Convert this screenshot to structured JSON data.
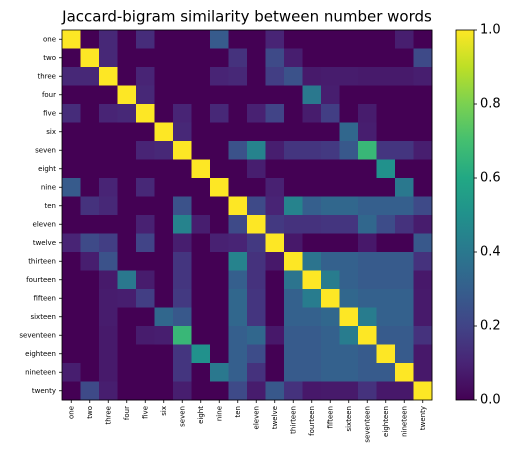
{
  "chart_data": {
    "type": "heatmap",
    "title": "Jaccard-bigram similarity between number words",
    "categories": [
      "one",
      "two",
      "three",
      "four",
      "five",
      "six",
      "seven",
      "eight",
      "nine",
      "ten",
      "eleven",
      "twelve",
      "thirteen",
      "fourteen",
      "fifteen",
      "sixteen",
      "seventeen",
      "eighteen",
      "nineteen",
      "twenty"
    ],
    "values": [
      [
        1,
        0,
        0.111,
        0,
        0.125,
        0,
        0,
        0,
        0.286,
        0,
        0,
        0.1,
        0,
        0,
        0,
        0,
        0,
        0,
        0.083,
        0
      ],
      [
        0,
        1,
        0.111,
        0,
        0,
        0,
        0,
        0,
        0,
        0.143,
        0,
        0.222,
        0.083,
        0,
        0,
        0,
        0,
        0,
        0,
        0.222
      ],
      [
        0.111,
        0.111,
        1,
        0,
        0.1,
        0,
        0,
        0,
        0.1,
        0.111,
        0,
        0.182,
        0.25,
        0.071,
        0.077,
        0.077,
        0.071,
        0.071,
        0.071,
        0.083
      ],
      [
        0,
        0,
        0,
        1,
        0.111,
        0,
        0,
        0,
        0,
        0,
        0,
        0,
        0,
        0.4,
        0.083,
        0,
        0,
        0,
        0,
        0
      ],
      [
        0.125,
        0,
        0.1,
        0.111,
        1,
        0,
        0.1,
        0,
        0.111,
        0,
        0.091,
        0.2,
        0,
        0.077,
        0.182,
        0,
        0.077,
        0,
        0,
        0
      ],
      [
        0,
        0,
        0,
        0,
        0,
        1,
        0.111,
        0,
        0,
        0,
        0,
        0,
        0,
        0,
        0,
        0.333,
        0.083,
        0,
        0,
        0
      ],
      [
        0,
        0,
        0,
        0,
        0.1,
        0.111,
        1,
        0,
        0,
        0.25,
        0.444,
        0.083,
        0.154,
        0.154,
        0.167,
        0.273,
        0.667,
        0.154,
        0.154,
        0.083
      ],
      [
        0,
        0,
        0,
        0,
        0,
        0,
        0,
        1,
        0,
        0,
        0.083,
        0,
        0,
        0,
        0,
        0,
        0,
        0.5,
        0,
        0
      ],
      [
        0.286,
        0,
        0.1,
        0,
        0.111,
        0,
        0,
        0,
        1,
        0,
        0,
        0.091,
        0,
        0,
        0,
        0,
        0,
        0,
        0.4,
        0
      ],
      [
        0,
        0.143,
        0.111,
        0,
        0,
        0,
        0.25,
        0,
        0,
        1,
        0.222,
        0.1,
        0.444,
        0.3,
        0.333,
        0.333,
        0.3,
        0.3,
        0.3,
        0.222
      ],
      [
        0,
        0,
        0,
        0,
        0.091,
        0,
        0.444,
        0.083,
        0,
        0.222,
        1,
        0.167,
        0.143,
        0.143,
        0.154,
        0.154,
        0.333,
        0.231,
        0.143,
        0.077
      ],
      [
        0.1,
        0.222,
        0.182,
        0,
        0.2,
        0,
        0.083,
        0,
        0.091,
        0.1,
        0.167,
        1,
        0.067,
        0,
        0,
        0,
        0.067,
        0,
        0,
        0.273
      ],
      [
        0,
        0.083,
        0.25,
        0,
        0,
        0,
        0.154,
        0,
        0,
        0.444,
        0.143,
        0.067,
        1,
        0.385,
        0.308,
        0.308,
        0.286,
        0.286,
        0.286,
        0.143
      ],
      [
        0,
        0,
        0.071,
        0.4,
        0.077,
        0,
        0.154,
        0,
        0,
        0.3,
        0.143,
        0,
        0.385,
        1,
        0.417,
        0.308,
        0.286,
        0.286,
        0.286,
        0.067
      ],
      [
        0,
        0,
        0.077,
        0.083,
        0.182,
        0,
        0.167,
        0,
        0,
        0.333,
        0.154,
        0,
        0.308,
        0.417,
        1,
        0.333,
        0.308,
        0.308,
        0.308,
        0.071
      ],
      [
        0,
        0,
        0.077,
        0,
        0,
        0.333,
        0.273,
        0,
        0,
        0.333,
        0.154,
        0,
        0.308,
        0.308,
        0.333,
        1,
        0.417,
        0.308,
        0.308,
        0.071
      ],
      [
        0,
        0,
        0.071,
        0,
        0.077,
        0.083,
        0.667,
        0,
        0,
        0.3,
        0.333,
        0.067,
        0.286,
        0.286,
        0.308,
        0.417,
        1,
        0.286,
        0.286,
        0.143
      ],
      [
        0,
        0,
        0.071,
        0,
        0,
        0,
        0.154,
        0.5,
        0,
        0.3,
        0.231,
        0,
        0.286,
        0.286,
        0.308,
        0.308,
        0.286,
        1,
        0.286,
        0.067
      ],
      [
        0.083,
        0,
        0.071,
        0,
        0,
        0,
        0.154,
        0,
        0.4,
        0.3,
        0.143,
        0,
        0.286,
        0.286,
        0.308,
        0.308,
        0.286,
        0.286,
        1,
        0.067
      ],
      [
        0,
        0.222,
        0.083,
        0,
        0,
        0,
        0.083,
        0,
        0,
        0.222,
        0.077,
        0.273,
        0.143,
        0.067,
        0.071,
        0.071,
        0.143,
        0.067,
        0.067,
        1
      ]
    ],
    "colormap": "viridis",
    "clim": [
      0,
      1
    ],
    "cticks": [
      {
        "value": 0,
        "label": "0.0"
      },
      {
        "value": 0.2,
        "label": "0.2"
      },
      {
        "value": 0.4,
        "label": "0.4"
      },
      {
        "value": 0.6,
        "label": "0.6"
      },
      {
        "value": 0.8,
        "label": "0.8"
      },
      {
        "value": 1,
        "label": "1.0"
      }
    ]
  }
}
